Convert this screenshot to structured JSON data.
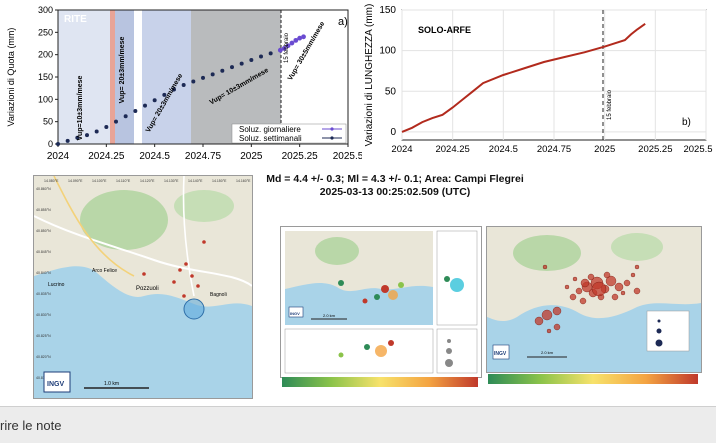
{
  "chart_a": {
    "type": "scatter",
    "panel_label": "a)",
    "station": "RITE",
    "ylabel": "Variazioni di Quota (mm)",
    "ylim": [
      0,
      300
    ],
    "xlim": [
      2024,
      2025.5
    ],
    "y_ticks": [
      "0",
      "50",
      "100",
      "150",
      "200",
      "250",
      "300"
    ],
    "x_ticks": [
      "2024",
      "2024.25",
      "2024.5",
      "2024.75",
      "2025",
      "2025.25",
      "2025.5"
    ],
    "period_labels": [
      "Vup=10±3mm/mese",
      "Vup= 20±3mm/mese",
      "Vup= 20±3mm/mese",
      "Vup= 10±3mm/mese",
      "Vup= 30±5mm/mese"
    ],
    "event_label": "15 febbraio",
    "legend": [
      "Soluz. giornaliere",
      "Soluz. settimanali"
    ],
    "series": [
      {
        "name": "Soluz. settimanali",
        "x": [
          2024.0,
          2024.05,
          2024.1,
          2024.15,
          2024.2,
          2024.25,
          2024.3,
          2024.35,
          2024.4,
          2024.45,
          2024.5,
          2024.55,
          2024.6,
          2024.65,
          2024.7,
          2024.75,
          2024.8,
          2024.85,
          2024.9,
          2024.95,
          2025.0,
          2025.05,
          2025.1,
          2025.15
        ],
        "values": [
          0,
          7,
          14,
          20,
          28,
          38,
          50,
          62,
          74,
          86,
          98,
          110,
          122,
          132,
          140,
          148,
          156,
          164,
          172,
          180,
          188,
          196,
          203,
          210
        ]
      },
      {
        "name": "Soluz. giornaliere",
        "x": [
          2025.15,
          2025.17,
          2025.19,
          2025.21,
          2025.23,
          2025.25,
          2025.27
        ],
        "values": [
          210,
          214,
          220,
          226,
          232,
          237,
          240
        ]
      }
    ]
  },
  "chart_b": {
    "type": "line",
    "panel_label": "b)",
    "station": "SOLO-ARFE",
    "ylabel": "Variazioni di LUNGHEZZA (mm)",
    "ylim": [
      -10,
      150
    ],
    "xlim": [
      2024,
      2025.5
    ],
    "y_ticks": [
      "0",
      "50",
      "100",
      "150"
    ],
    "x_ticks": [
      "2024",
      "2024.25",
      "2024.5",
      "2024.75",
      "2025",
      "2025.25",
      "2025.5"
    ],
    "event_label": "15 febbraio",
    "series": [
      {
        "name": "",
        "x": [
          2024.0,
          2024.05,
          2024.1,
          2024.15,
          2024.2,
          2024.25,
          2024.3,
          2024.35,
          2024.4,
          2024.5,
          2024.6,
          2024.7,
          2024.8,
          2024.9,
          2025.0,
          2025.05,
          2025.1,
          2025.13,
          2025.16,
          2025.2
        ],
        "values": [
          0,
          5,
          12,
          17,
          21,
          30,
          40,
          50,
          60,
          70,
          78,
          86,
          92,
          98,
          105,
          109,
          113,
          120,
          126,
          133
        ]
      }
    ]
  },
  "event_caption": {
    "line1": "Md = 4.4 +/- 0.3; Ml = 4.3 +/- 0.1; Area: Campi Flegrei",
    "line2": "2025-03-13 00:25:02.509 (UTC)"
  },
  "map1": {
    "logo": "INGV",
    "places": [
      "Pozzuoli",
      "Arco Felice",
      "Bagnoli",
      "Lucrino"
    ],
    "lat_ticks": [
      "40.860°N",
      "40.855°N",
      "40.850°N",
      "40.845°N",
      "40.840°N",
      "40.835°N",
      "40.830°N",
      "40.825°N",
      "40.820°N",
      "40.815°N"
    ],
    "lon_ticks": [
      "14.080°E",
      "14.090°E",
      "14.100°E",
      "14.110°E",
      "14.120°E",
      "14.130°E",
      "14.140°E",
      "14.150°E",
      "14.160°E"
    ],
    "scale": "1.0 km"
  },
  "map2": {
    "logo": "INGV",
    "scale": "2.0 km"
  },
  "map3": {
    "logo": "INGV",
    "scale": "2.0 km"
  },
  "footer": {
    "label": "rire le note"
  },
  "colors": {
    "red": "#c0392b",
    "blue": "#2c3e8a",
    "sea": "#a9d3e8",
    "land": "#e9e6d8",
    "green_area": "#b9d7a8"
  }
}
